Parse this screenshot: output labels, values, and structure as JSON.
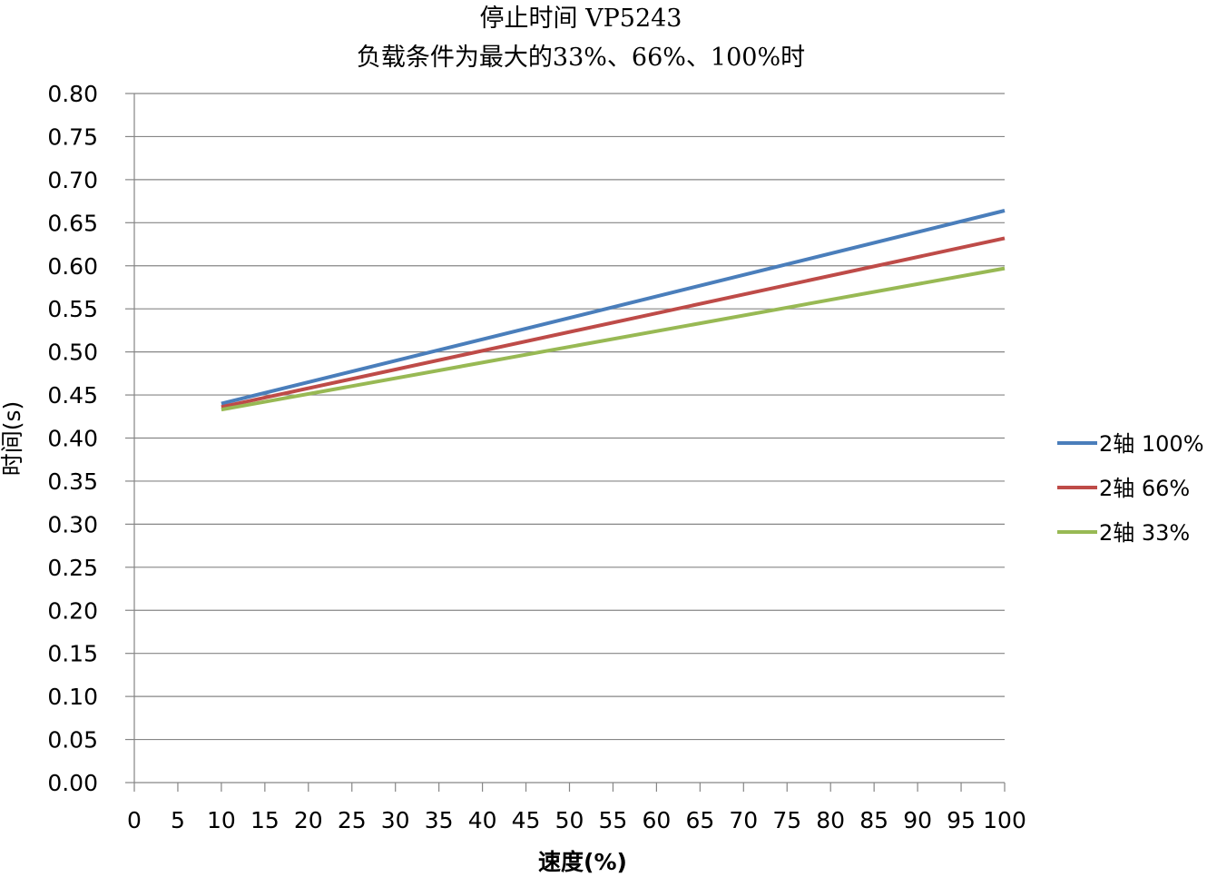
{
  "chart_data": {
    "type": "line",
    "title": "停止时间 VP5243",
    "subtitle": "负载条件为最大的33%、66%、100%时",
    "xlabel": "速度(%)",
    "ylabel": "时间(s)",
    "xlim": [
      0,
      100
    ],
    "ylim": [
      0,
      0.8
    ],
    "x_ticks": [
      "0",
      "5",
      "10",
      "15",
      "20",
      "25",
      "30",
      "35",
      "40",
      "45",
      "50",
      "55",
      "60",
      "65",
      "70",
      "75",
      "80",
      "85",
      "90",
      "95",
      "100"
    ],
    "y_ticks": [
      "0.00",
      "0.05",
      "0.10",
      "0.15",
      "0.20",
      "0.25",
      "0.30",
      "0.35",
      "0.40",
      "0.45",
      "0.50",
      "0.55",
      "0.60",
      "0.65",
      "0.70",
      "0.75",
      "0.80"
    ],
    "grid": "horizontal",
    "legend_position": "right",
    "series": [
      {
        "name": "2轴 100%",
        "color": "#4A7EBB",
        "x": [
          10,
          100
        ],
        "y": [
          0.44,
          0.664
        ]
      },
      {
        "name": "2轴 66%",
        "color": "#BE4B48",
        "x": [
          10,
          100
        ],
        "y": [
          0.436,
          0.632
        ]
      },
      {
        "name": "2轴 33%",
        "color": "#98B954",
        "x": [
          10,
          100
        ],
        "y": [
          0.433,
          0.597
        ]
      }
    ]
  }
}
